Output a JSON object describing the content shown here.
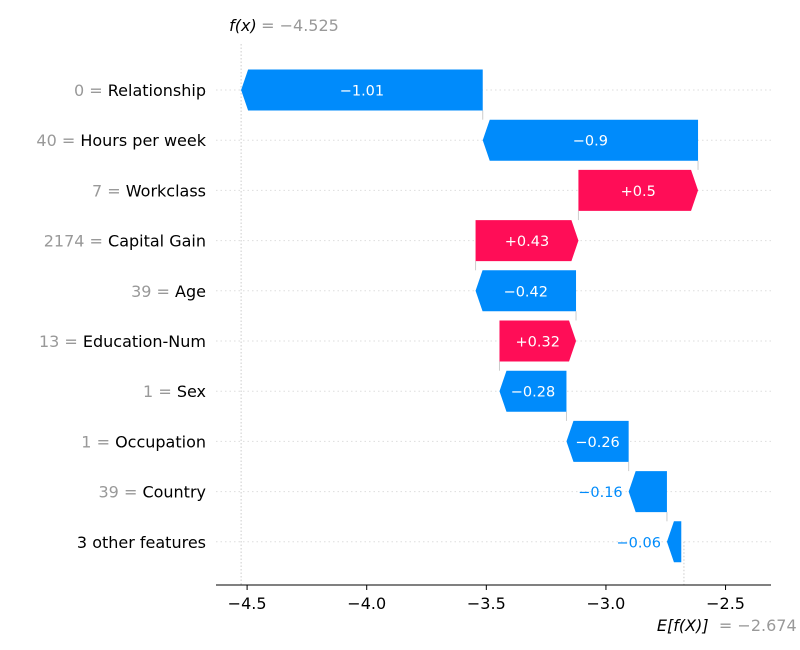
{
  "chart_data": {
    "type": "waterfall",
    "fx_label": "f(x)",
    "fx_value": "= −4.525",
    "ex_label": "E[f(X)]",
    "ex_value": "= −2.674",
    "fx": -4.525,
    "base_value": -2.674,
    "xlim": [
      -4.63,
      -2.31
    ],
    "xticks": [
      -4.5,
      -4.0,
      -3.5,
      -3.0,
      -2.5
    ],
    "xtick_labels": [
      "−4.5",
      "−4.0",
      "−3.5",
      "−3.0",
      "−2.5"
    ],
    "colors": {
      "positive": "#ff0d57",
      "negative": "#008bfb",
      "feature_value": "#999999",
      "text": "#000000"
    },
    "rows": [
      {
        "value_label": "0 =",
        "feature": "Relationship",
        "shap": -1.01,
        "label": "−1.01"
      },
      {
        "value_label": "40 =",
        "feature": "Hours per week",
        "shap": -0.9,
        "label": "−0.9"
      },
      {
        "value_label": "7 =",
        "feature": "Workclass",
        "shap": 0.5,
        "label": "+0.5"
      },
      {
        "value_label": "2174 =",
        "feature": "Capital Gain",
        "shap": 0.43,
        "label": "+0.43"
      },
      {
        "value_label": "39 =",
        "feature": "Age",
        "shap": -0.42,
        "label": "−0.42"
      },
      {
        "value_label": "13 =",
        "feature": "Education-Num",
        "shap": 0.32,
        "label": "+0.32"
      },
      {
        "value_label": "1 =",
        "feature": "Sex",
        "shap": -0.28,
        "label": "−0.28"
      },
      {
        "value_label": "1 =",
        "feature": "Occupation",
        "shap": -0.26,
        "label": "−0.26"
      },
      {
        "value_label": "39 =",
        "feature": "Country",
        "shap": -0.16,
        "label": "−0.16"
      },
      {
        "value_label": "",
        "feature": "3 other features",
        "shap": -0.06,
        "label": "−0.06"
      }
    ]
  }
}
